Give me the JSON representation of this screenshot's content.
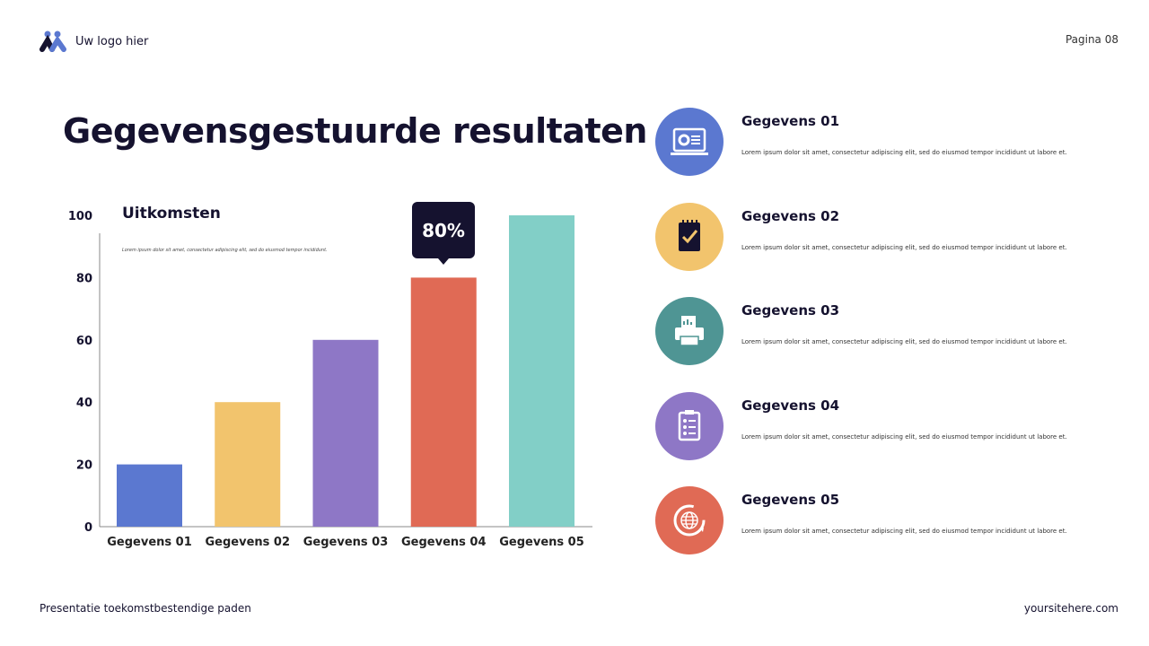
{
  "header": {
    "logo_text": "Uw logo hier",
    "page_label": "Pagina 08"
  },
  "title": "Gegevensgestuurde resultaten",
  "chart_panel": {
    "title": "Uitkomsten",
    "subtitle": "Lorem ipsum dolor sit amet, consectetur adipiscing elit, sed do eiusmod tempor incididunt.",
    "tooltip": "80%"
  },
  "chart_data": {
    "type": "bar",
    "categories": [
      "Gegevens 01",
      "Gegevens 02",
      "Gegevens 03",
      "Gegevens 04",
      "Gegevens 05"
    ],
    "values": [
      20,
      40,
      60,
      80,
      100
    ],
    "colors": [
      "#5b78d0",
      "#f2c46d",
      "#8e77c6",
      "#e06a55",
      "#82cfc7"
    ],
    "ylim": [
      0,
      100
    ],
    "yticks": [
      0,
      20,
      40,
      60,
      80,
      100
    ],
    "title": "Uitkomsten",
    "xlabel": "",
    "ylabel": "",
    "grid": false,
    "highlight": {
      "category": "Gegevens 04",
      "label": "80%"
    }
  },
  "items": [
    {
      "title": "Gegevens 01",
      "desc": "Lorem ipsum dolor sit amet, consectetur adipiscing elit, sed do eiusmod tempor incididunt ut labore et.",
      "icon": "laptop-chart-icon",
      "color": "#5b78d0"
    },
    {
      "title": "Gegevens 02",
      "desc": "Lorem ipsum dolor sit amet, consectetur adipiscing elit, sed do eiusmod tempor incididunt ut labore et.",
      "icon": "notepad-check-icon",
      "color": "#f2c46d"
    },
    {
      "title": "Gegevens 03",
      "desc": "Lorem ipsum dolor sit amet, consectetur adipiscing elit, sed do eiusmod tempor incididunt ut labore et.",
      "icon": "printer-icon",
      "color": "#4f9594"
    },
    {
      "title": "Gegevens 04",
      "desc": "Lorem ipsum dolor sit amet, consectetur adipiscing elit, sed do eiusmod tempor incididunt ut labore et.",
      "icon": "clipboard-checklist-icon",
      "color": "#8e77c6"
    },
    {
      "title": "Gegevens 05",
      "desc": "Lorem ipsum dolor sit amet, consectetur adipiscing elit, sed do eiusmod tempor incididunt ut labore et.",
      "icon": "globe-refresh-icon",
      "color": "#e06a55"
    }
  ],
  "footer": {
    "left": "Presentatie toekomstbestendige paden",
    "right": "yoursitehere.com"
  }
}
